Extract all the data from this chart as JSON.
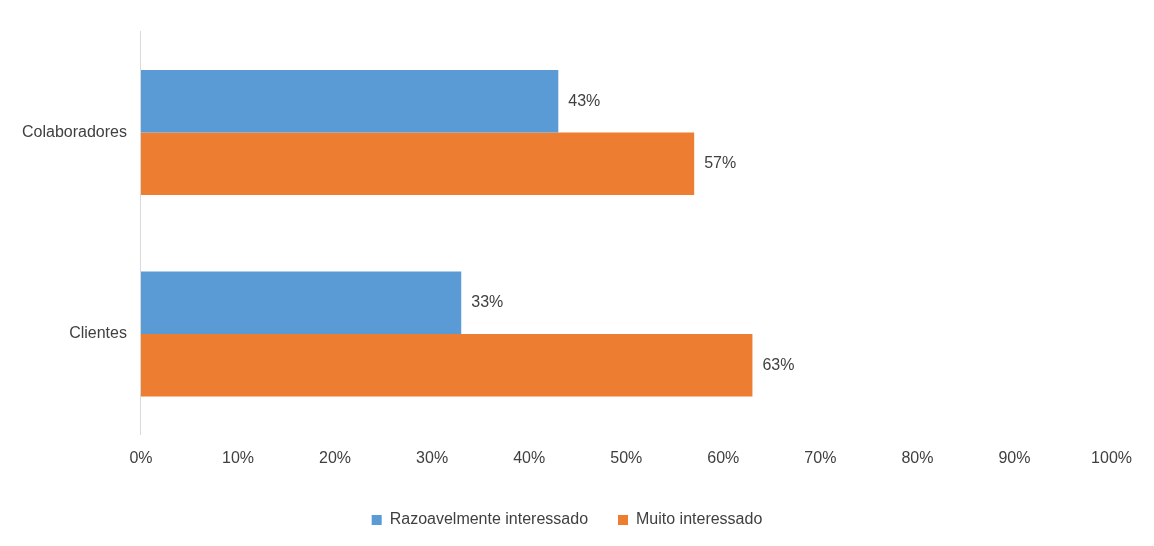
{
  "chart_data": {
    "type": "bar",
    "orientation": "horizontal",
    "categories": [
      "Colaboradores",
      "Clientes"
    ],
    "series": [
      {
        "name": "Razoavelmente interessado",
        "color": "#5b9bd5",
        "values": [
          43,
          33
        ],
        "value_labels": [
          "43%",
          "33%"
        ]
      },
      {
        "name": "Muito interessado",
        "color": "#ed7d31",
        "values": [
          57,
          63
        ],
        "value_labels": [
          "57%",
          "63%"
        ]
      }
    ],
    "xlim": [
      0,
      100
    ],
    "xticks": [
      {
        "value": 0,
        "label": "0%"
      },
      {
        "value": 10,
        "label": "10%"
      },
      {
        "value": 20,
        "label": "20%"
      },
      {
        "value": 30,
        "label": "30%"
      },
      {
        "value": 40,
        "label": "40%"
      },
      {
        "value": 50,
        "label": "50%"
      },
      {
        "value": 60,
        "label": "60%"
      },
      {
        "value": 70,
        "label": "70%"
      },
      {
        "value": 80,
        "label": "80%"
      },
      {
        "value": 90,
        "label": "90%"
      },
      {
        "value": 100,
        "label": "100%"
      }
    ],
    "grid": false,
    "legend": "bottom"
  }
}
